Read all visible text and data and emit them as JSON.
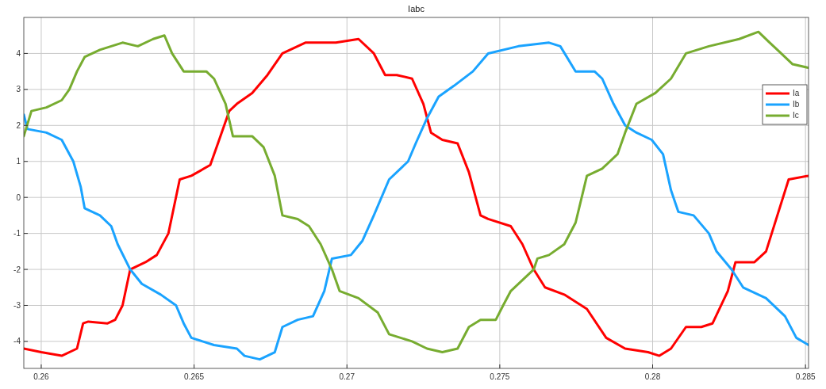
{
  "chart_data": {
    "type": "line",
    "title": "Iabc",
    "xlim": [
      0.25943,
      0.2851
    ],
    "ylim": [
      -4.75,
      5
    ],
    "xticks": [
      0.26,
      0.265,
      0.27,
      0.275,
      0.28,
      0.285
    ],
    "yticks": [
      -4,
      -3,
      -2,
      -1,
      0,
      1,
      2,
      3,
      4
    ],
    "grid": true,
    "legend": "top right",
    "series": [
      {
        "name": "Ia",
        "color": "#ff0000",
        "x": [
          0.25943,
          0.26,
          0.26067,
          0.26117,
          0.26137,
          0.26154,
          0.26217,
          0.26242,
          0.26266,
          0.26291,
          0.26341,
          0.26378,
          0.26416,
          0.26453,
          0.26491,
          0.26553,
          0.26578,
          0.26615,
          0.2664,
          0.2669,
          0.2674,
          0.26789,
          0.26864,
          0.26964,
          0.27038,
          0.27088,
          0.27125,
          0.27163,
          0.27213,
          0.2725,
          0.27275,
          0.27312,
          0.27362,
          0.27399,
          0.27437,
          0.27462,
          0.27536,
          0.27574,
          0.27611,
          0.27648,
          0.27711,
          0.27785,
          0.27848,
          0.2791,
          0.27985,
          0.28022,
          0.2806,
          0.28109,
          0.28159,
          0.28196,
          0.28246,
          0.28271,
          0.28333,
          0.28371,
          0.28408,
          0.28445,
          0.2851
        ],
        "values": [
          -4.2,
          -4.3,
          -4.4,
          -4.2,
          -3.5,
          -3.45,
          -3.5,
          -3.4,
          -3.0,
          -2.0,
          -1.8,
          -1.6,
          -1.0,
          0.5,
          0.6,
          0.9,
          1.5,
          2.4,
          2.6,
          2.9,
          3.4,
          4.0,
          4.3,
          4.3,
          4.4,
          4.0,
          3.4,
          3.4,
          3.3,
          2.6,
          1.8,
          1.6,
          1.5,
          0.7,
          -0.5,
          -0.6,
          -0.8,
          -1.3,
          -2.0,
          -2.5,
          -2.7,
          -3.1,
          -3.9,
          -4.2,
          -4.3,
          -4.4,
          -4.2,
          -3.6,
          -3.6,
          -3.5,
          -2.6,
          -1.8,
          -1.8,
          -1.5,
          -0.5,
          0.5,
          0.6
        ]
      },
      {
        "name": "Ib",
        "color": "#1aa3ff",
        "x": [
          0.25943,
          0.25955,
          0.26017,
          0.26067,
          0.26105,
          0.26129,
          0.26142,
          0.26192,
          0.26229,
          0.2625,
          0.26291,
          0.26329,
          0.26391,
          0.26441,
          0.26466,
          0.26491,
          0.26565,
          0.2664,
          0.26665,
          0.26715,
          0.26764,
          0.26789,
          0.26839,
          0.26889,
          0.26926,
          0.26951,
          0.27013,
          0.27051,
          0.27088,
          0.27138,
          0.272,
          0.27225,
          0.27262,
          0.273,
          0.2735,
          0.27412,
          0.27462,
          0.27561,
          0.27661,
          0.27698,
          0.27748,
          0.2781,
          0.27835,
          0.27872,
          0.2791,
          0.27947,
          0.27997,
          0.28034,
          0.2806,
          0.28084,
          0.28134,
          0.28184,
          0.28209,
          0.28258,
          0.28296,
          0.28371,
          0.28433,
          0.2847,
          0.2851
        ],
        "values": [
          2.3,
          1.9,
          1.8,
          1.6,
          1.0,
          0.3,
          -0.3,
          -0.5,
          -0.8,
          -1.3,
          -2.0,
          -2.4,
          -2.7,
          -3.0,
          -3.5,
          -3.9,
          -4.1,
          -4.2,
          -4.4,
          -4.5,
          -4.3,
          -3.6,
          -3.4,
          -3.3,
          -2.6,
          -1.7,
          -1.6,
          -1.2,
          -0.5,
          0.5,
          1.0,
          1.5,
          2.2,
          2.8,
          3.1,
          3.5,
          4.0,
          4.2,
          4.3,
          4.2,
          3.5,
          3.5,
          3.3,
          2.6,
          2.0,
          1.8,
          1.6,
          1.2,
          0.2,
          -0.4,
          -0.5,
          -1.0,
          -1.5,
          -2.0,
          -2.5,
          -2.8,
          -3.3,
          -3.9,
          -4.1
        ]
      },
      {
        "name": "Ic",
        "color": "#77ac30",
        "x": [
          0.25943,
          0.25968,
          0.26017,
          0.26067,
          0.26092,
          0.26117,
          0.26142,
          0.26192,
          0.26266,
          0.26316,
          0.26366,
          0.26403,
          0.26428,
          0.26466,
          0.2654,
          0.26565,
          0.26603,
          0.26627,
          0.2669,
          0.26727,
          0.26764,
          0.26789,
          0.26839,
          0.26876,
          0.26914,
          0.26951,
          0.26976,
          0.27038,
          0.27101,
          0.27138,
          0.27213,
          0.27262,
          0.27312,
          0.27362,
          0.27399,
          0.27437,
          0.27487,
          0.27511,
          0.27536,
          0.27611,
          0.27623,
          0.27661,
          0.27711,
          0.27748,
          0.27785,
          0.27835,
          0.27885,
          0.2791,
          0.27947,
          0.28009,
          0.2806,
          0.28109,
          0.28184,
          0.28283,
          0.28346,
          0.28383,
          0.28408,
          0.28458,
          0.2851
        ],
        "values": [
          1.7,
          2.4,
          2.5,
          2.7,
          3.0,
          3.5,
          3.9,
          4.1,
          4.3,
          4.2,
          4.4,
          4.5,
          4.0,
          3.5,
          3.5,
          3.3,
          2.6,
          1.7,
          1.7,
          1.4,
          0.6,
          -0.5,
          -0.6,
          -0.8,
          -1.3,
          -2.0,
          -2.6,
          -2.8,
          -3.2,
          -3.8,
          -4.0,
          -4.2,
          -4.3,
          -4.2,
          -3.6,
          -3.4,
          -3.4,
          -3.0,
          -2.6,
          -2.0,
          -1.7,
          -1.6,
          -1.3,
          -0.7,
          0.6,
          0.8,
          1.2,
          1.8,
          2.6,
          2.9,
          3.3,
          4.0,
          4.2,
          4.4,
          4.6,
          4.3,
          4.1,
          3.7,
          3.6
        ]
      }
    ]
  }
}
